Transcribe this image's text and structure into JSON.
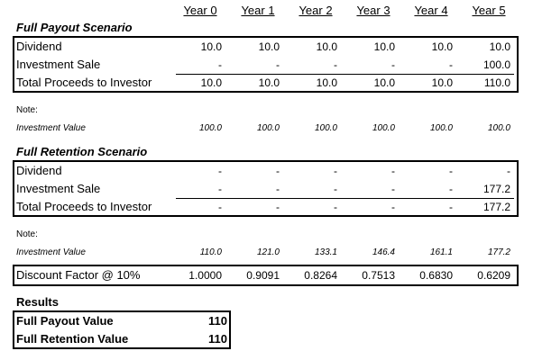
{
  "years": [
    "Year 0",
    "Year 1",
    "Year 2",
    "Year 3",
    "Year 4",
    "Year 5"
  ],
  "payout": {
    "title": "Full Payout Scenario",
    "rows": [
      {
        "label": "Dividend",
        "values": [
          "10.0",
          "10.0",
          "10.0",
          "10.0",
          "10.0",
          "10.0"
        ]
      },
      {
        "label": "Investment Sale",
        "values": [
          "-",
          "-",
          "-",
          "-",
          "-",
          "100.0"
        ]
      },
      {
        "label": "Total Proceeds to Investor",
        "values": [
          "10.0",
          "10.0",
          "10.0",
          "10.0",
          "10.0",
          "110.0"
        ]
      }
    ],
    "note_label": "Note:",
    "investment_value": {
      "label": "Investment Value",
      "values": [
        "100.0",
        "100.0",
        "100.0",
        "100.0",
        "100.0",
        "100.0"
      ]
    }
  },
  "retention": {
    "title": "Full Retention Scenario",
    "rows": [
      {
        "label": "Dividend",
        "values": [
          "-",
          "-",
          "-",
          "-",
          "-",
          "-"
        ]
      },
      {
        "label": "Investment Sale",
        "values": [
          "-",
          "-",
          "-",
          "-",
          "-",
          "177.2"
        ]
      },
      {
        "label": "Total Proceeds to Investor",
        "values": [
          "-",
          "-",
          "-",
          "-",
          "-",
          "177.2"
        ]
      }
    ],
    "note_label": "Note:",
    "investment_value": {
      "label": "Investment Value",
      "values": [
        "110.0",
        "121.0",
        "133.1",
        "146.4",
        "161.1",
        "177.2"
      ]
    }
  },
  "discount": {
    "label": "Discount Factor @ 10%",
    "values": [
      "1.0000",
      "0.9091",
      "0.8264",
      "0.7513",
      "0.6830",
      "0.6209"
    ]
  },
  "results": {
    "title": "Results",
    "rows": [
      {
        "label": "Full Payout Value",
        "value": "110"
      },
      {
        "label": "Full Retention Value",
        "value": "110"
      }
    ]
  }
}
